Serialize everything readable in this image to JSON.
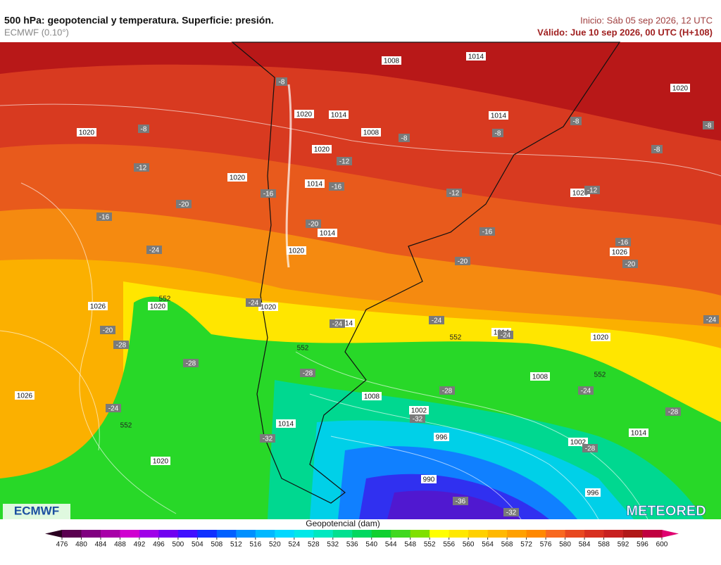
{
  "header": {
    "title": "500 hPa: geopotencial y temperatura. Superficie: presión.",
    "model": "ECMWF (0.10°)",
    "init": "Inicio: Sáb 05 sep 2026, 12 UTC",
    "valid": "Válido: Jue 10 sep 2026, 00 UTC (H+108)"
  },
  "map": {
    "isobars": [
      "1008",
      "1014",
      "1020",
      "1020",
      "1020",
      "1014",
      "1008",
      "1014",
      "1020",
      "1020",
      "1014",
      "1020",
      "1014",
      "1026",
      "1020",
      "1026",
      "1020",
      "1020",
      "1014",
      "1014",
      "1020",
      "1008",
      "1026",
      "1008",
      "1002",
      "1014",
      "996",
      "1002",
      "1014",
      "1020",
      "990",
      "996"
    ],
    "temperatures": [
      "-8",
      "-8",
      "-8",
      "-8",
      "-8",
      "-8",
      "-8",
      "-12",
      "-12",
      "-16",
      "-16",
      "-12",
      "-12",
      "-20",
      "-16",
      "-20",
      "-16",
      "-16",
      "-20",
      "-20",
      "-24",
      "-24",
      "-24",
      "-24",
      "-24",
      "-24",
      "-20",
      "-28",
      "-28",
      "-28",
      "-28",
      "-24",
      "-28",
      "-24",
      "-32",
      "-32",
      "-28",
      "-36",
      "-32"
    ],
    "contour_552": [
      "552",
      "552",
      "552",
      "552",
      "552"
    ]
  },
  "logos": {
    "left": "ECMWF",
    "right": "METEORED"
  },
  "legend": {
    "title": "Geopotencial (dam)",
    "ticks": [
      476,
      480,
      484,
      488,
      492,
      496,
      500,
      504,
      508,
      512,
      516,
      520,
      524,
      528,
      532,
      536,
      540,
      544,
      548,
      552,
      556,
      560,
      564,
      568,
      572,
      576,
      580,
      584,
      588,
      592,
      596,
      600
    ],
    "colors": [
      "#2a0020",
      "#5a0050",
      "#800080",
      "#a800a8",
      "#d000d0",
      "#a000e8",
      "#7000f0",
      "#4010ff",
      "#1030ff",
      "#0060ff",
      "#0090ff",
      "#00b8ff",
      "#00d8ff",
      "#00e8e8",
      "#00e8c0",
      "#00e090",
      "#00d860",
      "#10d030",
      "#40d820",
      "#80e000",
      "#ffff00",
      "#ffe800",
      "#ffd000",
      "#ffb800",
      "#ffa000",
      "#ff8800",
      "#f86820",
      "#e84820",
      "#d83020",
      "#c82020",
      "#b01818",
      "#c00040",
      "#e00070"
    ]
  }
}
